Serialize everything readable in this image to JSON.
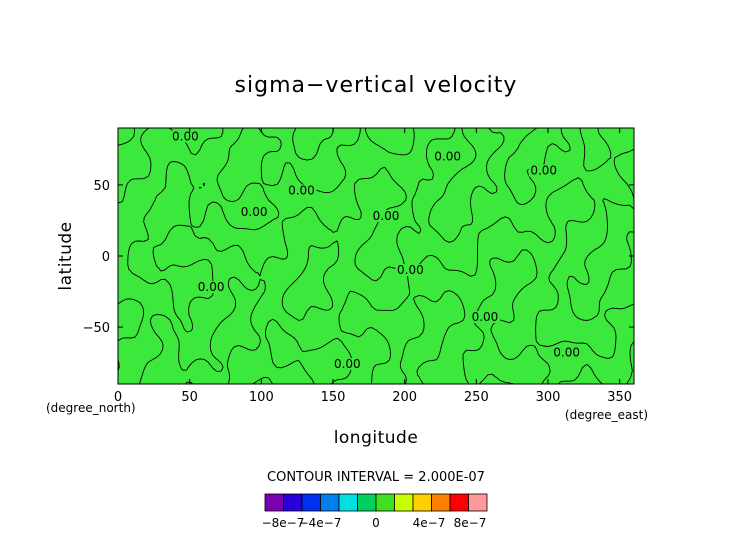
{
  "chart_data": {
    "type": "contour",
    "title": "sigma−vertical velocity",
    "xlabel": "longitude",
    "ylabel": "latitude",
    "x_unit": "(degree_east)",
    "y_unit": "(degree_north)",
    "xlim": [
      0,
      360
    ],
    "ylim": [
      -90,
      90
    ],
    "x_ticks": [
      0,
      50,
      100,
      150,
      200,
      250,
      300,
      350
    ],
    "y_ticks": [
      -50,
      0,
      50
    ],
    "x_tick_labels": [
      "0",
      "50",
      "100",
      "150",
      "200",
      "250",
      "300",
      "350"
    ],
    "y_tick_labels": [
      "−50",
      "0",
      "50"
    ],
    "contour_interval_text": "CONTOUR INTERVAL = 2.000E-07",
    "contour_interval": 2e-07,
    "contour_labels": [
      {
        "text": "0.00",
        "lon": 47,
        "lat": 82
      },
      {
        "text": "0.00",
        "lon": 230,
        "lat": 68
      },
      {
        "text": "0.00",
        "lon": 297,
        "lat": 58
      },
      {
        "text": "0.00",
        "lon": 128,
        "lat": 44
      },
      {
        "text": "0.00",
        "lon": 95,
        "lat": 29
      },
      {
        "text": "0.00",
        "lon": 187,
        "lat": 26
      },
      {
        "text": "0.00",
        "lon": 204,
        "lat": -12
      },
      {
        "text": "0.00",
        "lon": 65,
        "lat": -24
      },
      {
        "text": "0.00",
        "lon": 256,
        "lat": -45
      },
      {
        "text": "0.00",
        "lon": 313,
        "lat": -70
      },
      {
        "text": "0.00",
        "lon": 160,
        "lat": -78
      }
    ],
    "colorbar": {
      "tick_labels": [
        "−8e−7",
        "−4e−7",
        "0",
        "4e−7",
        "8e−7"
      ],
      "colors": [
        "#7a00b0",
        "#2a00d8",
        "#0030f0",
        "#0080f0",
        "#00e0e0",
        "#00d060",
        "#40e020",
        "#c8ff00",
        "#ffd000",
        "#ff8000",
        "#ff0000",
        "#ff9a9a"
      ]
    },
    "field_color": "#3de83d",
    "grid": false
  }
}
